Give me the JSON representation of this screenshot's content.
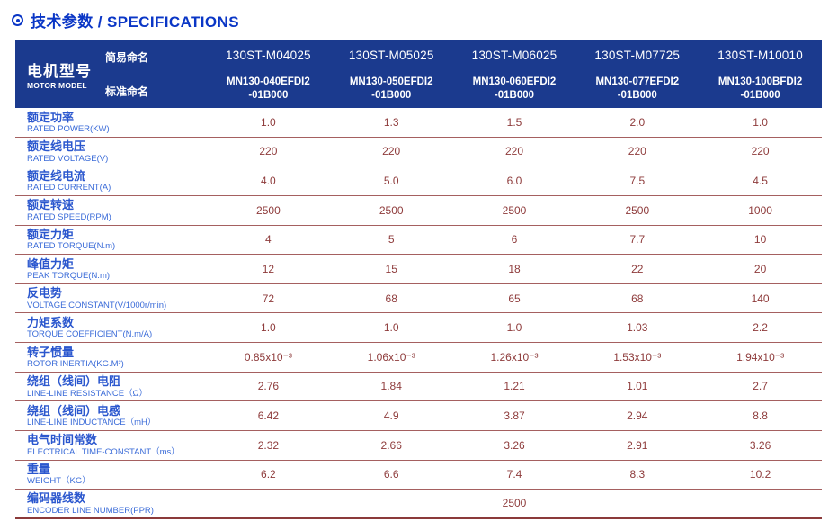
{
  "title": {
    "text": "技术参数 / SPECIFICATIONS"
  },
  "colors": {
    "header_bg": "#1b3a8e",
    "title_blue": "#0a36c6",
    "label_blue": "#2b57ce",
    "label_blue_light": "#3a6bd8",
    "value_maroon": "#8e3b3b",
    "divider_maroon": "#a56060"
  },
  "table": {
    "model_header": {
      "zh": "电机型号",
      "en": "MOTOR MODEL",
      "simple_label": "简易命名",
      "standard_label": "标准命名"
    },
    "models": [
      {
        "simple": "130ST-M04025",
        "standard_line1": "MN130-040EFDI2",
        "standard_line2": "-01B000"
      },
      {
        "simple": "130ST-M05025",
        "standard_line1": "MN130-050EFDI2",
        "standard_line2": "-01B000"
      },
      {
        "simple": "130ST-M06025",
        "standard_line1": "MN130-060EFDI2",
        "standard_line2": "-01B000"
      },
      {
        "simple": "130ST-M07725",
        "standard_line1": "MN130-077EFDI2",
        "standard_line2": "-01B000"
      },
      {
        "simple": "130ST-M10010",
        "standard_line1": "MN130-100BFDI2",
        "standard_line2": "-01B000"
      }
    ],
    "rows": [
      {
        "zh": "额定功率",
        "en": "RATED POWER(KW)",
        "values": [
          "1.0",
          "1.3",
          "1.5",
          "2.0",
          "1.0"
        ]
      },
      {
        "zh": "额定线电压",
        "en": "RATED VOLTAGE(V)",
        "values": [
          "220",
          "220",
          "220",
          "220",
          "220"
        ]
      },
      {
        "zh": "额定线电流",
        "en": "RATED CURRENT(A)",
        "values": [
          "4.0",
          "5.0",
          "6.0",
          "7.5",
          "4.5"
        ]
      },
      {
        "zh": "额定转速",
        "en": "RATED SPEED(RPM)",
        "values": [
          "2500",
          "2500",
          "2500",
          "2500",
          "1000"
        ]
      },
      {
        "zh": "额定力矩",
        "en": "RATED TORQUE(N.m)",
        "values": [
          "4",
          "5",
          "6",
          "7.7",
          "10"
        ]
      },
      {
        "zh": "峰值力矩",
        "en": "PEAK TORQUE(N.m)",
        "values": [
          "12",
          "15",
          "18",
          "22",
          "20"
        ]
      },
      {
        "zh": "反电势",
        "en": "VOLTAGE CONSTANT(V/1000r/min)",
        "values": [
          "72",
          "68",
          "65",
          "68",
          "140"
        ]
      },
      {
        "zh": "力矩系数",
        "en": "TORQUE COEFFICIENT(N.m/A)",
        "values": [
          "1.0",
          "1.0",
          "1.0",
          "1.03",
          "2.2"
        ]
      },
      {
        "zh": "转子惯量",
        "en": "ROTOR INERTIA(KG.M²)",
        "values": [
          "0.85x10⁻³",
          "1.06x10⁻³",
          "1.26x10⁻³",
          "1.53x10⁻³",
          "1.94x10⁻³"
        ]
      },
      {
        "zh": "绕组（线间）电阻",
        "en": "LINE-LINE RESISTANCE（Ω）",
        "values": [
          "2.76",
          "1.84",
          "1.21",
          "1.01",
          "2.7"
        ]
      },
      {
        "zh": "绕组（线间）电感",
        "en": "LINE-LINE INDUCTANCE（mH）",
        "values": [
          "6.42",
          "4.9",
          "3.87",
          "2.94",
          "8.8"
        ]
      },
      {
        "zh": "电气时间常数",
        "en": "ELECTRICAL TIME-CONSTANT（ms）",
        "values": [
          "2.32",
          "2.66",
          "3.26",
          "2.91",
          "3.26"
        ]
      },
      {
        "zh": "重量",
        "en": "WEIGHT（KG）",
        "values": [
          "6.2",
          "6.6",
          "7.4",
          "8.3",
          "10.2"
        ]
      }
    ],
    "encoder_row": {
      "zh": "编码器线数",
      "en": "ENCODER LINE NUMBER(PPR)",
      "value": "2500"
    }
  }
}
